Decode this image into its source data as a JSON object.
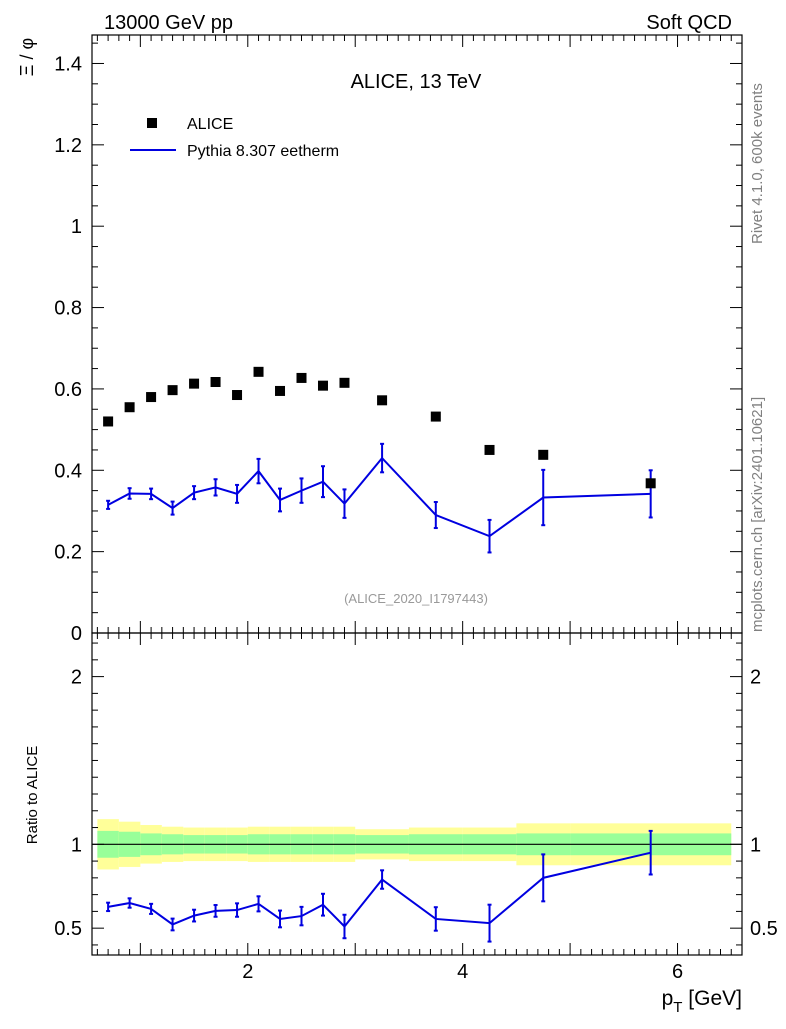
{
  "header": {
    "left": "13000 GeV pp",
    "right": "Soft QCD",
    "side_top": "Rivet 4.1.0,  600k events",
    "side_bottom": "mcplots.cern.ch [arXiv:2401.10621]"
  },
  "chart_data": [
    {
      "type": "scatter",
      "panel": "main",
      "title": "ALICE, 13 TeV",
      "analysis_label": "(ALICE_2020_I1797443)",
      "ylabel": "Ξ / φ",
      "xlabel": "p_T [GeV]",
      "xlim": [
        0.55,
        6.6
      ],
      "ylim": [
        0,
        1.47
      ],
      "yticks": [
        0,
        0.2,
        0.4,
        0.6,
        0.8,
        1,
        1.2,
        1.4
      ],
      "ytick_labels": [
        "0",
        "0.2",
        "0.4",
        "0.6",
        "0.8",
        "1",
        "1.2",
        "1.4"
      ],
      "legend_position": "top-left",
      "series": [
        {
          "name": "ALICE",
          "kind": "points",
          "color": "#000000",
          "x": [
            0.7,
            0.9,
            1.1,
            1.3,
            1.5,
            1.7,
            1.9,
            2.1,
            2.3,
            2.5,
            2.7,
            2.9,
            3.25,
            3.75,
            4.25,
            4.75,
            5.75
          ],
          "y": [
            0.52,
            0.555,
            0.58,
            0.597,
            0.613,
            0.617,
            0.585,
            0.642,
            0.595,
            0.627,
            0.608,
            0.615,
            0.572,
            0.532,
            0.45,
            0.438,
            0.368
          ]
        },
        {
          "name": "Pythia 8.307 eetherm",
          "kind": "line",
          "color": "#0000e0",
          "x": [
            0.7,
            0.9,
            1.1,
            1.3,
            1.5,
            1.7,
            1.9,
            2.1,
            2.3,
            2.5,
            2.7,
            2.9,
            3.25,
            3.75,
            4.25,
            4.75,
            5.75
          ],
          "y": [
            0.315,
            0.343,
            0.342,
            0.307,
            0.345,
            0.358,
            0.342,
            0.398,
            0.327,
            0.35,
            0.372,
            0.318,
            0.43,
            0.29,
            0.238,
            0.333,
            0.342
          ],
          "yerr": [
            0.01,
            0.013,
            0.013,
            0.016,
            0.016,
            0.02,
            0.022,
            0.03,
            0.028,
            0.03,
            0.038,
            0.035,
            0.035,
            0.032,
            0.04,
            0.068,
            0.058
          ]
        }
      ]
    },
    {
      "type": "line",
      "panel": "ratio",
      "ylabel": "Ratio to ALICE",
      "xlabel": "p_T [GeV]",
      "xlim": [
        0.55,
        6.6
      ],
      "ylim": [
        0.34,
        2.26
      ],
      "xticks": [
        2,
        4,
        6
      ],
      "xtick_labels": [
        "2",
        "4",
        "6"
      ],
      "yticks": [
        0.5,
        1,
        2
      ],
      "ytick_labels": [
        "0.5",
        "1",
        "2"
      ],
      "reference_line": 1,
      "bin_edges": [
        0.6,
        0.8,
        1.0,
        1.2,
        1.4,
        1.6,
        1.8,
        2.0,
        2.2,
        2.4,
        2.6,
        2.8,
        3.0,
        3.5,
        4.0,
        4.5,
        5.0,
        6.5
      ],
      "band_inner": [
        0.08,
        0.075,
        0.065,
        0.06,
        0.055,
        0.055,
        0.055,
        0.06,
        0.06,
        0.06,
        0.06,
        0.06,
        0.055,
        0.06,
        0.06,
        0.065,
        0.065
      ],
      "band_outer": [
        0.15,
        0.135,
        0.115,
        0.105,
        0.1,
        0.1,
        0.1,
        0.105,
        0.105,
        0.105,
        0.105,
        0.105,
        0.09,
        0.1,
        0.1,
        0.125,
        0.125
      ],
      "band_colors": {
        "inner": "#99ff99",
        "outer": "#ffff99"
      },
      "series": [
        {
          "name": "Pythia 8.307 eetherm / ALICE",
          "color": "#0000e0",
          "x": [
            0.7,
            0.9,
            1.1,
            1.3,
            1.5,
            1.7,
            1.9,
            2.1,
            2.3,
            2.5,
            2.7,
            2.9,
            3.25,
            3.75,
            4.25,
            4.75,
            5.75
          ],
          "y": [
            0.627,
            0.65,
            0.615,
            0.522,
            0.575,
            0.603,
            0.608,
            0.645,
            0.555,
            0.572,
            0.64,
            0.51,
            0.79,
            0.555,
            0.53,
            0.8,
            0.95
          ],
          "yerr": [
            0.025,
            0.028,
            0.03,
            0.035,
            0.035,
            0.035,
            0.04,
            0.045,
            0.05,
            0.055,
            0.065,
            0.07,
            0.055,
            0.07,
            0.11,
            0.14,
            0.13
          ]
        }
      ]
    }
  ]
}
